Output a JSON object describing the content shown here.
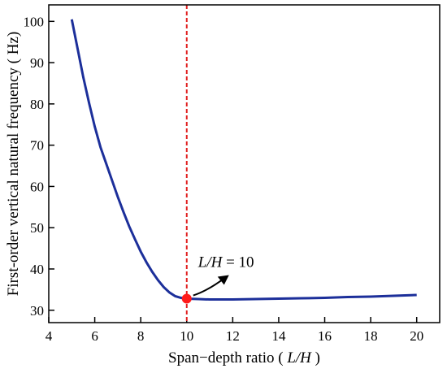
{
  "chart_data": {
    "type": "line",
    "title": "",
    "xlabel": {
      "prefix": "Span−depth ratio ( ",
      "italic": "L/H",
      "suffix": " )"
    },
    "ylabel": "First-order vertical natural frequency ( Hz)",
    "xlim": [
      4,
      21
    ],
    "ylim": [
      27,
      104
    ],
    "x_ticks": [
      4,
      6,
      8,
      10,
      12,
      14,
      16,
      18,
      20
    ],
    "y_ticks": [
      30,
      40,
      50,
      60,
      70,
      80,
      90,
      100
    ],
    "grid": false,
    "series": [
      {
        "color": "#1c2f9a",
        "x": [
          5.0,
          5.25,
          5.5,
          5.75,
          6.0,
          6.25,
          6.5,
          6.75,
          7.0,
          7.25,
          7.5,
          7.75,
          8.0,
          8.25,
          8.5,
          8.75,
          9.0,
          9.25,
          9.5,
          9.75,
          10.0,
          10.5,
          11.0,
          11.5,
          12.0,
          13.0,
          14.0,
          15.0,
          16.0,
          17.0,
          18.0,
          19.0,
          20.0
        ],
        "y": [
          100.5,
          93.5,
          86.5,
          80.3,
          74.5,
          69.5,
          65.5,
          61.5,
          57.5,
          53.8,
          50.3,
          47.2,
          44.2,
          41.6,
          39.3,
          37.3,
          35.6,
          34.3,
          33.4,
          33.0,
          32.8,
          32.7,
          32.6,
          32.6,
          32.6,
          32.7,
          32.8,
          32.9,
          33.0,
          33.2,
          33.3,
          33.5,
          33.7
        ]
      }
    ],
    "reference_line": {
      "x": 10,
      "color": "#e02020"
    },
    "marker": {
      "x": 10,
      "y": 32.8,
      "color": "#ff1a1a"
    },
    "annotation": {
      "italic": "L/H",
      "rest": " = 10"
    }
  }
}
